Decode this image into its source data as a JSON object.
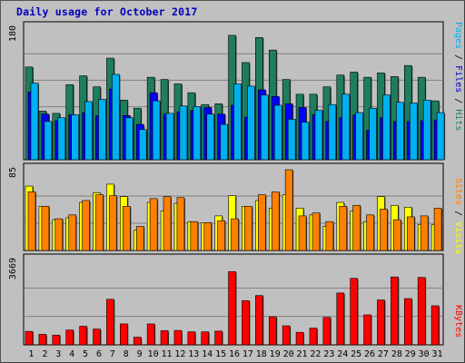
{
  "chart_data": {
    "type": "bar",
    "title": "Daily usage for October 2017",
    "categories": [
      "1",
      "2",
      "3",
      "4",
      "5",
      "6",
      "7",
      "8",
      "9",
      "10",
      "11",
      "12",
      "13",
      "14",
      "15",
      "16",
      "17",
      "18",
      "19",
      "20",
      "21",
      "22",
      "23",
      "24",
      "25",
      "26",
      "27",
      "28",
      "29",
      "30",
      "31"
    ],
    "weekend_days": [
      "1",
      "7",
      "8",
      "14",
      "15",
      "21",
      "22",
      "28",
      "29"
    ],
    "panels": [
      {
        "name": "hits_files_pages",
        "axis_max_label": "180",
        "ylim": [
          0,
          180
        ],
        "series": [
          {
            "name": "Hits",
            "color": "#1e7d5c",
            "values": [
              126,
              66,
              63,
              102,
              114,
              99,
              138,
              81,
              70,
              112,
              109,
              103,
              91,
              75,
              76,
              169,
              132,
              166,
              149,
              109,
              89,
              89,
              99,
              115,
              119,
              112,
              118,
              113,
              128,
              112,
              80
            ]
          },
          {
            "name": "Files",
            "color": "#0000ff",
            "values": [
              92,
              62,
              53,
              61,
              64,
              60,
              96,
              60,
              48,
              91,
              62,
              65,
              67,
              71,
              62,
              74,
              58,
              95,
              86,
              76,
              71,
              61,
              52,
              57,
              61,
              40,
              57,
              52,
              52,
              53,
              54
            ]
          },
          {
            "name": "Pages",
            "color": "#00b0f0",
            "values": [
              104,
              52,
              57,
              61,
              79,
              82,
              116,
              57,
              41,
              80,
              63,
              73,
              72,
              62,
              48,
              103,
              100,
              88,
              74,
              55,
              51,
              67,
              75,
              89,
              64,
              70,
              88,
              78,
              77,
              81,
              64
            ]
          }
        ]
      },
      {
        "name": "visits_sites",
        "axis_max_label": "85",
        "ylim": [
          0,
          85
        ],
        "series": [
          {
            "name": "Visits",
            "color": "#ffff00",
            "values": [
              67,
              46,
              32,
              34,
              50,
              60,
              69,
              56,
              21,
              50,
              41,
              49,
              30,
              29,
              36,
              57,
              46,
              52,
              44,
              58,
              44,
              37,
              25,
              50,
              41,
              30,
              56,
              47,
              45,
              27,
              27
            ]
          },
          {
            "name": "Sites",
            "color": "#ff8000",
            "values": [
              61,
              46,
              33,
              37,
              52,
              58,
              57,
              46,
              25,
              54,
              56,
              55,
              30,
              29,
              31,
              33,
              46,
              58,
              61,
              84,
              36,
              39,
              30,
              46,
              47,
              37,
              43,
              32,
              35,
              36,
              44
            ]
          }
        ]
      },
      {
        "name": "kbytes",
        "axis_max_label": "3669",
        "ylim": [
          0,
          3669
        ],
        "series": [
          {
            "name": "KBytes",
            "color": "#ff0000",
            "values": [
              580,
              450,
              420,
              640,
              800,
              680,
              1960,
              900,
              330,
              900,
              610,
              620,
              560,
              560,
              590,
              3150,
              1900,
              2120,
              1210,
              820,
              540,
              720,
              1180,
              2230,
              2860,
              1290,
              1930,
              2920,
              1990,
              2900,
              1680
            ]
          }
        ]
      }
    ],
    "side_labels": {
      "top": [
        {
          "text": "Pages",
          "color": "#00b0f0"
        },
        {
          "text": " / ",
          "color": "#000000"
        },
        {
          "text": "Files",
          "color": "#0000c0"
        },
        {
          "text": " / ",
          "color": "#000000"
        },
        {
          "text": "Hits",
          "color": "#1e7d5c"
        }
      ],
      "middle": [
        {
          "text": "Sites",
          "color": "#ff8000"
        },
        {
          "text": " / ",
          "color": "#000000"
        },
        {
          "text": "Visits",
          "color": "#ffff00"
        }
      ],
      "bottom": [
        {
          "text": "KBytes",
          "color": "#ff0000"
        }
      ]
    },
    "tick_colors": {
      "weekday": "#000000",
      "weekend": "#008040"
    },
    "plot_background": "#c0c0c0",
    "gridline_color": "#808080"
  }
}
